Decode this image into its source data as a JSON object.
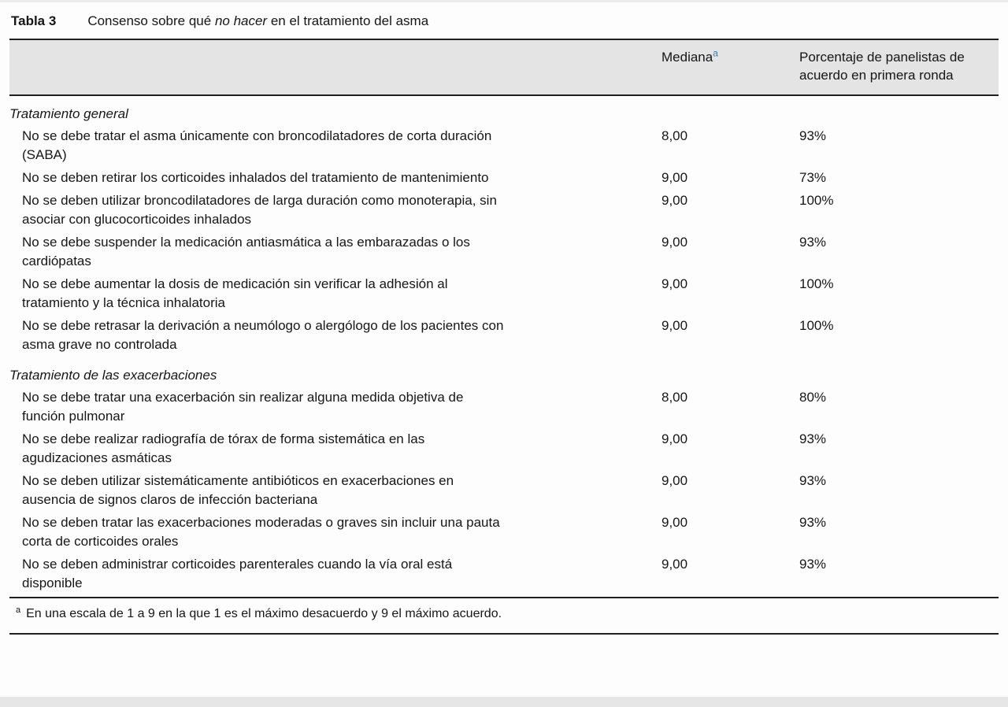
{
  "table": {
    "label": "Tabla 3",
    "caption": {
      "pre": "Consenso sobre qué ",
      "italic": "no hacer",
      "post": " en el tratamiento del asma"
    },
    "columns": {
      "mediana_label": "Mediana",
      "mediana_marker": "a",
      "porcentaje_label": "Porcentaje de panelistas de acuerdo en primera ronda"
    },
    "sections": [
      {
        "header": "Tratamiento general",
        "rows": [
          {
            "text": "No se debe tratar el asma únicamente con broncodilatadores de corta duración (SABA)",
            "mediana": "8,00",
            "porcentaje": "93%"
          },
          {
            "text": "No se deben retirar los corticoides inhalados del tratamiento de mantenimiento",
            "mediana": "9,00",
            "porcentaje": "73%"
          },
          {
            "text": "No se deben utilizar broncodilatadores de larga duración como monoterapia, sin asociar con glucocorticoides inhalados",
            "mediana": "9,00",
            "porcentaje": "100%"
          },
          {
            "text": "No se debe suspender la medicación antiasmática a las embarazadas o los cardiópatas",
            "mediana": "9,00",
            "porcentaje": "93%"
          },
          {
            "text": "No se debe aumentar la dosis de medicación sin verificar la adhesión al tratamiento y la técnica inhalatoria",
            "mediana": "9,00",
            "porcentaje": "100%"
          },
          {
            "text": "No se debe retrasar la derivación a neumólogo o alergólogo de los pacientes con asma grave no controlada",
            "mediana": "9,00",
            "porcentaje": "100%"
          }
        ]
      },
      {
        "header": "Tratamiento de las exacerbaciones",
        "rows": [
          {
            "text": "No se debe tratar una exacerbación sin realizar alguna medida objetiva de función pulmonar",
            "mediana": "8,00",
            "porcentaje": "80%"
          },
          {
            "text": "No se debe realizar radiografía de tórax de forma sistemática en las agudizaciones asmáticas",
            "mediana": "9,00",
            "porcentaje": "93%"
          },
          {
            "text": "No se deben utilizar sistemáticamente antibióticos en exacerbaciones en ausencia de signos claros de infección bacteriana",
            "mediana": "9,00",
            "porcentaje": "93%"
          },
          {
            "text": "No se deben tratar las exacerbaciones moderadas o graves sin incluir una pauta corta de corticoides orales",
            "mediana": "9,00",
            "porcentaje": "93%"
          },
          {
            "text": "No se deben administrar corticoides parenterales cuando la vía oral está disponible",
            "mediana": "9,00",
            "porcentaje": "93%"
          }
        ]
      }
    ],
    "footnote": {
      "marker": "a",
      "text": "En una escala de 1 a 9 en la que 1 es el máximo desacuerdo y 9 el máximo acuerdo."
    }
  },
  "colors": {
    "header_band": "#e4e4e4",
    "rule": "#1f1f1f",
    "footnote_link_accent": "#2e7fb5"
  }
}
